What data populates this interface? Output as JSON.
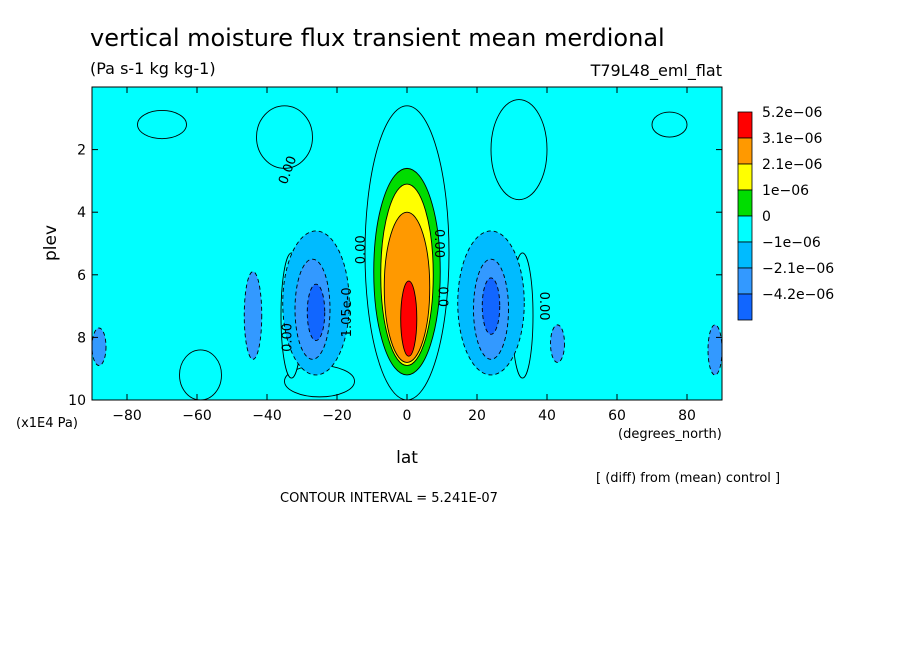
{
  "chart_data": {
    "type": "heatmap",
    "title": "vertical moisture flux transient mean merdional",
    "units_label": "(Pa s-1 kg kg-1)",
    "experiment_label": "T79L48_eml_flat",
    "xlabel": "lat",
    "ylabel": "plev",
    "x_units_label": "(degrees_north)",
    "y_units_label": "(x1E4 Pa)",
    "diff_label": "[ (diff) from (mean) control ]",
    "contour_interval_label": "CONTOUR INTERVAL = 5.241E-07",
    "xlim": [
      -90,
      90
    ],
    "ylim": [
      10,
      0
    ],
    "x_ticks": [
      -80,
      -60,
      -40,
      -20,
      0,
      20,
      40,
      60,
      80
    ],
    "x_tick_labels": [
      "−80",
      "−60",
      "−40",
      "−20",
      "0",
      "20",
      "40",
      "60",
      "80"
    ],
    "y_ticks": [
      2,
      4,
      6,
      8,
      10
    ],
    "y_tick_labels": [
      "2",
      "4",
      "6",
      "8",
      "10"
    ],
    "legend": {
      "labels": [
        "5.2e−06",
        "3.1e−06",
        "2.1e−06",
        "1e−06",
        "0",
        "−1e−06",
        "−2.1e−06",
        "−4.2e−06"
      ],
      "colors": [
        "#ff0000",
        "#ff9900",
        "#ffff00",
        "#00dd00",
        "#00ffff",
        "#00bbff",
        "#3399ff",
        "#1166ff"
      ]
    },
    "contour_labels": [
      {
        "text": "0.00",
        "lat": -33,
        "plev": 2.7,
        "rotate": -70
      },
      {
        "text": "0.00",
        "lat": -12,
        "plev": 5.2,
        "rotate": -90
      },
      {
        "text": "1.05e-0",
        "lat": -16,
        "plev": 7.2,
        "rotate": -90
      },
      {
        "text": "0.00",
        "lat": -33,
        "plev": 8.0,
        "rotate": -90
      },
      {
        "text": "0.00",
        "lat": 8,
        "plev": 5.0,
        "rotate": 90
      },
      {
        "text": "0.0",
        "lat": 9,
        "plev": 6.7,
        "rotate": 90
      },
      {
        "text": "0.00",
        "lat": 38,
        "plev": 7.0,
        "rotate": 90
      }
    ],
    "regions": [
      {
        "level": "0",
        "shape": "band-top",
        "lat": [
          -90,
          90
        ],
        "plev": [
          0,
          0.9
        ]
      },
      {
        "level": "0",
        "shape": "band-bottom",
        "lat": [
          -90,
          90
        ],
        "plev": [
          9.3,
          10
        ]
      },
      {
        "level": "0",
        "lat_c": -59,
        "plev_c": 9.2,
        "dlat": 6,
        "dplev": 0.8
      },
      {
        "level": "0",
        "lat_c": -25,
        "plev_c": 9.4,
        "dlat": 10,
        "dplev": 0.5
      },
      {
        "level": "0",
        "lat_c": -33,
        "plev_c": 7.3,
        "dlat": 3,
        "dplev": 2.0
      },
      {
        "level": "0",
        "lat_c": 33,
        "plev_c": 7.3,
        "dlat": 3,
        "dplev": 2.0
      },
      {
        "level": "0",
        "lat_c": -35,
        "plev_c": 1.6,
        "dlat": 8,
        "dplev": 1.0
      },
      {
        "level": "0",
        "lat_c": 32,
        "plev_c": 2.0,
        "dlat": 8,
        "dplev": 1.6
      },
      {
        "level": "0",
        "lat_c": -70,
        "plev_c": 1.2,
        "dlat": 7,
        "dplev": 0.45
      },
      {
        "level": "0",
        "lat_c": 75,
        "plev_c": 1.2,
        "dlat": 5,
        "dplev": 0.4
      },
      {
        "level": "0",
        "lat_c": 0,
        "plev_c": 5.3,
        "dlat": 12,
        "dplev": 4.7
      },
      {
        "level": "1e-06",
        "lat_c": 0,
        "plev_c": 5.9,
        "dlat": 9.5,
        "dplev": 3.3
      },
      {
        "level": "2.1e-06",
        "lat_c": 0,
        "plev_c": 6.0,
        "dlat": 7.5,
        "dplev": 2.9
      },
      {
        "level": "3.1e-06",
        "lat_c": 0,
        "plev_c": 6.4,
        "dlat": 6.5,
        "dplev": 2.4
      },
      {
        "level": "5.2e-06",
        "lat_c": 0.5,
        "plev_c": 7.4,
        "dlat": 2.3,
        "dplev": 1.2
      },
      {
        "level": "-1e-06",
        "lat_c": -26,
        "plev_c": 6.9,
        "dlat": 9.5,
        "dplev": 2.3
      },
      {
        "level": "-1e-06",
        "lat_c": 24,
        "plev_c": 6.9,
        "dlat": 9.5,
        "dplev": 2.3
      },
      {
        "level": "-2.1e-06",
        "lat_c": -27,
        "plev_c": 7.1,
        "dlat": 5,
        "dplev": 1.6
      },
      {
        "level": "-2.1e-06",
        "lat_c": 24,
        "plev_c": 7.1,
        "dlat": 5,
        "dplev": 1.6
      },
      {
        "level": "-2.1e-06",
        "lat_c": -44,
        "plev_c": 7.3,
        "dlat": 2.5,
        "dplev": 1.4
      },
      {
        "level": "-2.1e-06",
        "lat_c": 43,
        "plev_c": 8.2,
        "dlat": 2.0,
        "dplev": 0.6
      },
      {
        "level": "-2.1e-06",
        "lat_c": -88,
        "plev_c": 8.3,
        "dlat": 2.0,
        "dplev": 0.6
      },
      {
        "level": "-2.1e-06",
        "lat_c": 88,
        "plev_c": 8.4,
        "dlat": 2.0,
        "dplev": 0.8
      },
      {
        "level": "-4.2e-06",
        "lat_c": -26,
        "plev_c": 7.2,
        "dlat": 2.5,
        "dplev": 0.9
      },
      {
        "level": "-4.2e-06",
        "lat_c": 24,
        "plev_c": 7.0,
        "dlat": 2.5,
        "dplev": 0.9
      }
    ]
  }
}
